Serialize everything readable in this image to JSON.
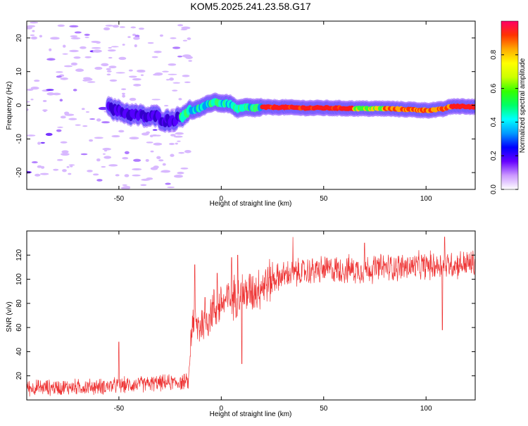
{
  "title": "KOM5.2025.241.23.58.G17",
  "chart_data": [
    {
      "type": "heatmap",
      "xlabel": "Height of straight line (km)",
      "ylabel": "Frequency (Hz)",
      "xlim": [
        -95,
        124
      ],
      "ylim": [
        -25,
        25
      ],
      "xticks": [
        -50,
        0,
        50,
        100
      ],
      "yticks": [
        -20,
        -10,
        0,
        10,
        20
      ],
      "track": [
        [
          -55,
          0.5
        ],
        [
          -52,
          -1.5
        ],
        [
          -48,
          -2
        ],
        [
          -44,
          -2.8
        ],
        [
          -40,
          -3
        ],
        [
          -36,
          -3.5
        ],
        [
          -32,
          -3.2
        ],
        [
          -28,
          -4.5
        ],
        [
          -24,
          -4.5
        ],
        [
          -20,
          -3.5
        ],
        [
          -17,
          -2
        ],
        [
          -14,
          -1.5
        ],
        [
          -10,
          -0.8
        ],
        [
          -6,
          0.5
        ],
        [
          -3,
          1
        ],
        [
          0,
          0.5
        ],
        [
          4,
          0.5
        ],
        [
          8,
          -1.2
        ],
        [
          12,
          -0.6
        ],
        [
          16,
          -0.8
        ],
        [
          20,
          -0.6
        ],
        [
          30,
          -0.6
        ],
        [
          40,
          -0.8
        ],
        [
          50,
          -0.8
        ],
        [
          60,
          -0.9
        ],
        [
          70,
          -1
        ],
        [
          80,
          -1
        ],
        [
          90,
          -1.2
        ],
        [
          100,
          -1.5
        ],
        [
          108,
          -1.2
        ],
        [
          112,
          -0.4
        ],
        [
          118,
          -0.3
        ],
        [
          124,
          -0.5
        ]
      ],
      "colorbar": {
        "label": "Normalized spectral amplitude",
        "range": [
          0,
          1
        ],
        "ticks": [
          "0.0",
          "0.2",
          "0.4",
          "0.6",
          "0.8"
        ],
        "colors": [
          "#ffffff",
          "#cc99ff",
          "#6600ff",
          "#0000ff",
          "#0099ff",
          "#00ffff",
          "#00ff66",
          "#33ff00",
          "#ccff00",
          "#ffff00",
          "#ffaa00",
          "#ff3300",
          "#ff0066"
        ]
      }
    },
    {
      "type": "line",
      "xlabel": "Height of straight line (km)",
      "ylabel": "SNR (v/v)",
      "xlim": [
        -95,
        124
      ],
      "ylim": [
        0,
        140
      ],
      "xticks": [
        -50,
        0,
        50,
        100
      ],
      "yticks": [
        20,
        40,
        60,
        80,
        100,
        120
      ],
      "color": "#ee3333",
      "trend": [
        [
          -95,
          10
        ],
        [
          -60,
          11
        ],
        [
          -30,
          14
        ],
        [
          -16,
          15
        ],
        [
          -14,
          70
        ],
        [
          -12,
          60
        ],
        [
          -8,
          65
        ],
        [
          -4,
          75
        ],
        [
          0,
          80
        ],
        [
          5,
          85
        ],
        [
          10,
          88
        ],
        [
          15,
          90
        ],
        [
          20,
          95
        ],
        [
          25,
          100
        ],
        [
          30,
          103
        ],
        [
          40,
          106
        ],
        [
          50,
          108
        ],
        [
          60,
          108
        ],
        [
          70,
          108
        ],
        [
          80,
          110
        ],
        [
          90,
          110
        ],
        [
          100,
          111
        ],
        [
          110,
          112
        ],
        [
          124,
          113
        ]
      ],
      "spikes": [
        [
          -50,
          48
        ],
        [
          -13,
          112
        ],
        [
          -8,
          85
        ],
        [
          -2,
          105
        ],
        [
          5,
          118
        ],
        [
          8,
          120
        ],
        [
          10,
          30
        ],
        [
          35,
          135
        ],
        [
          70,
          130
        ],
        [
          108,
          58
        ],
        [
          109,
          135
        ]
      ]
    }
  ]
}
